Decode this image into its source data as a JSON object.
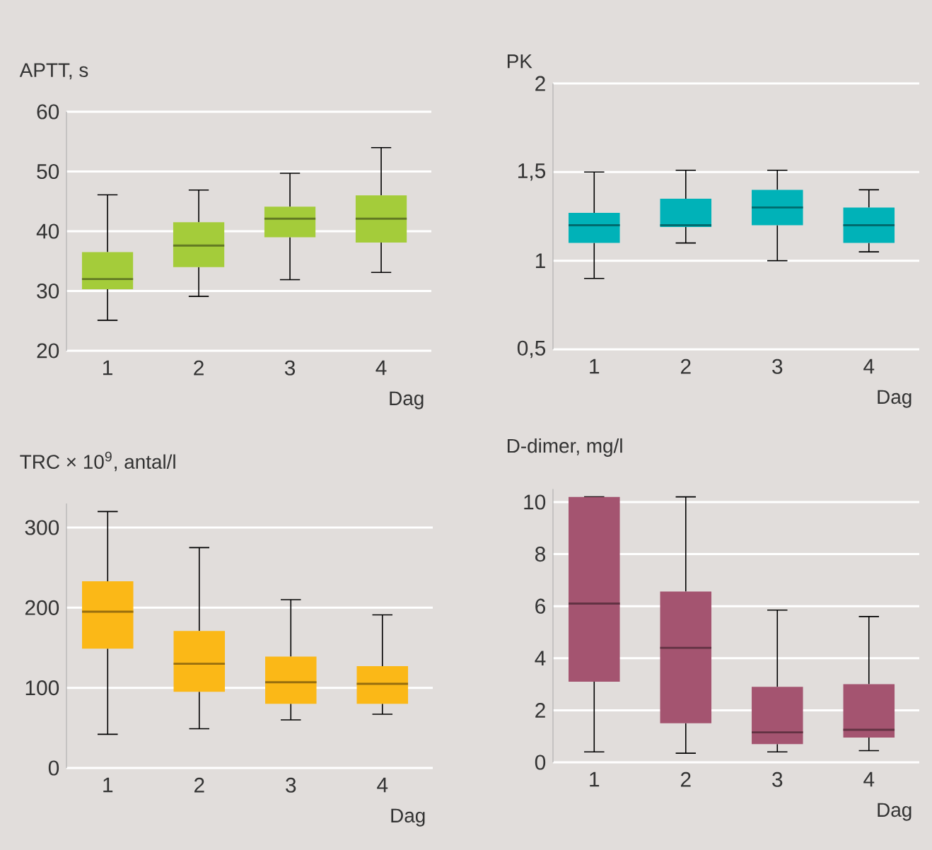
{
  "chart_data": [
    {
      "type": "box",
      "ylabel": "APTT, s",
      "xlabel": "Dag",
      "categories": [
        "1",
        "2",
        "3",
        "4"
      ],
      "color": "#a4cc3a",
      "ylim": [
        20,
        60
      ],
      "yticks": [
        20,
        30,
        40,
        50,
        60
      ],
      "grid": "y",
      "boxes": [
        {
          "low": 25.1,
          "q1": 30.3,
          "median": 32,
          "q3": 36.5,
          "high": 46.1
        },
        {
          "low": 29.1,
          "q1": 34,
          "median": 37.6,
          "q3": 41.5,
          "high": 46.9
        },
        {
          "low": 31.9,
          "q1": 39,
          "median": 42.1,
          "q3": 44.1,
          "high": 49.7
        },
        {
          "low": 33.1,
          "q1": 38.1,
          "median": 42.1,
          "q3": 46,
          "high": 54
        }
      ]
    },
    {
      "type": "box",
      "ylabel": "PK",
      "xlabel": "Dag",
      "categories": [
        "1",
        "2",
        "3",
        "4"
      ],
      "color": "#00b2b8",
      "ylim": [
        0.5,
        2
      ],
      "yticks": [
        {
          "value": 0.5,
          "label": "0,5"
        },
        1,
        {
          "value": 1.5,
          "label": "1,5"
        },
        2
      ],
      "grid": "y",
      "boxes": [
        {
          "low": 0.9,
          "q1": 1.1,
          "median": 1.2,
          "q3": 1.27,
          "high": 1.5
        },
        {
          "low": 1.1,
          "q1": 1.19,
          "median": 1.2,
          "q3": 1.35,
          "high": 1.51
        },
        {
          "low": 1.0,
          "q1": 1.2,
          "median": 1.3,
          "q3": 1.4,
          "high": 1.51
        },
        {
          "low": 1.05,
          "q1": 1.1,
          "median": 1.2,
          "q3": 1.3,
          "high": 1.4
        }
      ]
    },
    {
      "type": "box",
      "ylabel": "TRC × 10$^{9}$, antal/l",
      "xlabel": "Dag",
      "categories": [
        "1",
        "2",
        "3",
        "4"
      ],
      "color": "#fbb817",
      "ylim": [
        0,
        330
      ],
      "yticks": [
        0,
        100,
        200,
        300
      ],
      "grid": "y",
      "boxes": [
        {
          "low": 42,
          "q1": 149,
          "median": 195,
          "q3": 233,
          "high": 320
        },
        {
          "low": 49,
          "q1": 95,
          "median": 130,
          "q3": 171,
          "high": 275
        },
        {
          "low": 60,
          "q1": 80,
          "median": 107,
          "q3": 139,
          "high": 210
        },
        {
          "low": 67,
          "q1": 80,
          "median": 105,
          "q3": 127,
          "high": 191
        }
      ]
    },
    {
      "type": "box",
      "ylabel": "D-dimer, mg/l",
      "xlabel": "Dag",
      "categories": [
        "1",
        "2",
        "3",
        "4"
      ],
      "color": "#a45470",
      "ylim": [
        0,
        10.5
      ],
      "yticks": [
        0,
        2,
        4,
        6,
        8,
        10
      ],
      "grid": "y",
      "boxes": [
        {
          "low": 0.4,
          "q1": 3.1,
          "median": 6.1,
          "q3": 10.2,
          "high": 10.2
        },
        {
          "low": 0.35,
          "q1": 1.5,
          "median": 4.4,
          "q3": 6.56,
          "high": 10.2
        },
        {
          "low": 0.4,
          "q1": 0.7,
          "median": 1.15,
          "q3": 2.9,
          "high": 5.85
        },
        {
          "low": 0.45,
          "q1": 0.95,
          "median": 1.25,
          "q3": 3.0,
          "high": 5.6
        }
      ]
    }
  ]
}
